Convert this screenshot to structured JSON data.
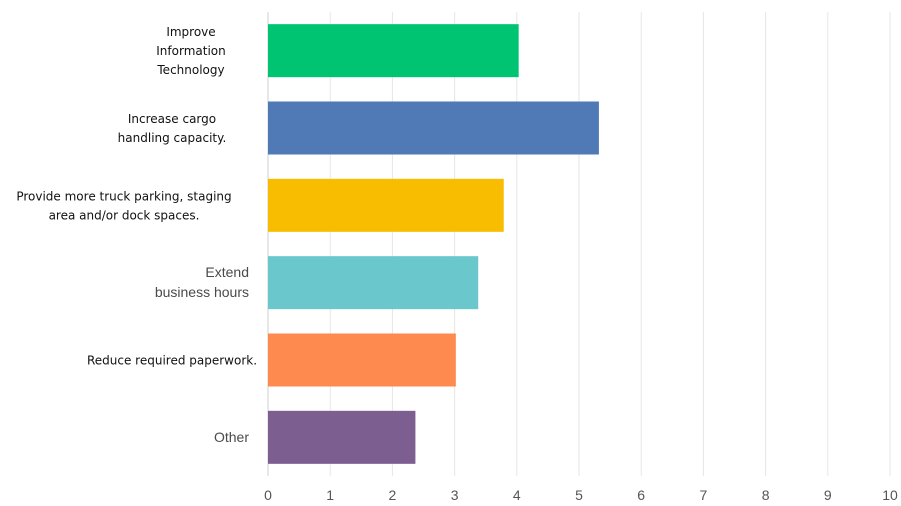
{
  "chart_data": {
    "type": "bar",
    "orientation": "horizontal",
    "categories": [
      {
        "lines": [
          "Improve",
          "Information",
          "Technology"
        ],
        "style": "dark"
      },
      {
        "lines": [
          "Increase cargo",
          "handling capacity."
        ],
        "style": "dark"
      },
      {
        "lines": [
          "Provide more truck parking, staging",
          "area and/or dock spaces."
        ],
        "style": "dark"
      },
      {
        "lines": [
          "Extend",
          "business hours"
        ],
        "style": "alt"
      },
      {
        "lines": [
          "Reduce required paperwork."
        ],
        "style": "dark"
      },
      {
        "lines": [
          "Other"
        ],
        "style": "alt"
      }
    ],
    "values": [
      4.03,
      5.32,
      3.79,
      3.38,
      3.02,
      2.37
    ],
    "colors": [
      "#00c471",
      "#4f7ab6",
      "#f8bd00",
      "#6ac8cc",
      "#ff8a50",
      "#7d5e91"
    ],
    "xlim": [
      0,
      10
    ],
    "xticks": [
      "0",
      "1",
      "2",
      "3",
      "4",
      "5",
      "6",
      "7",
      "8",
      "9",
      "10"
    ],
    "grid": true
  }
}
